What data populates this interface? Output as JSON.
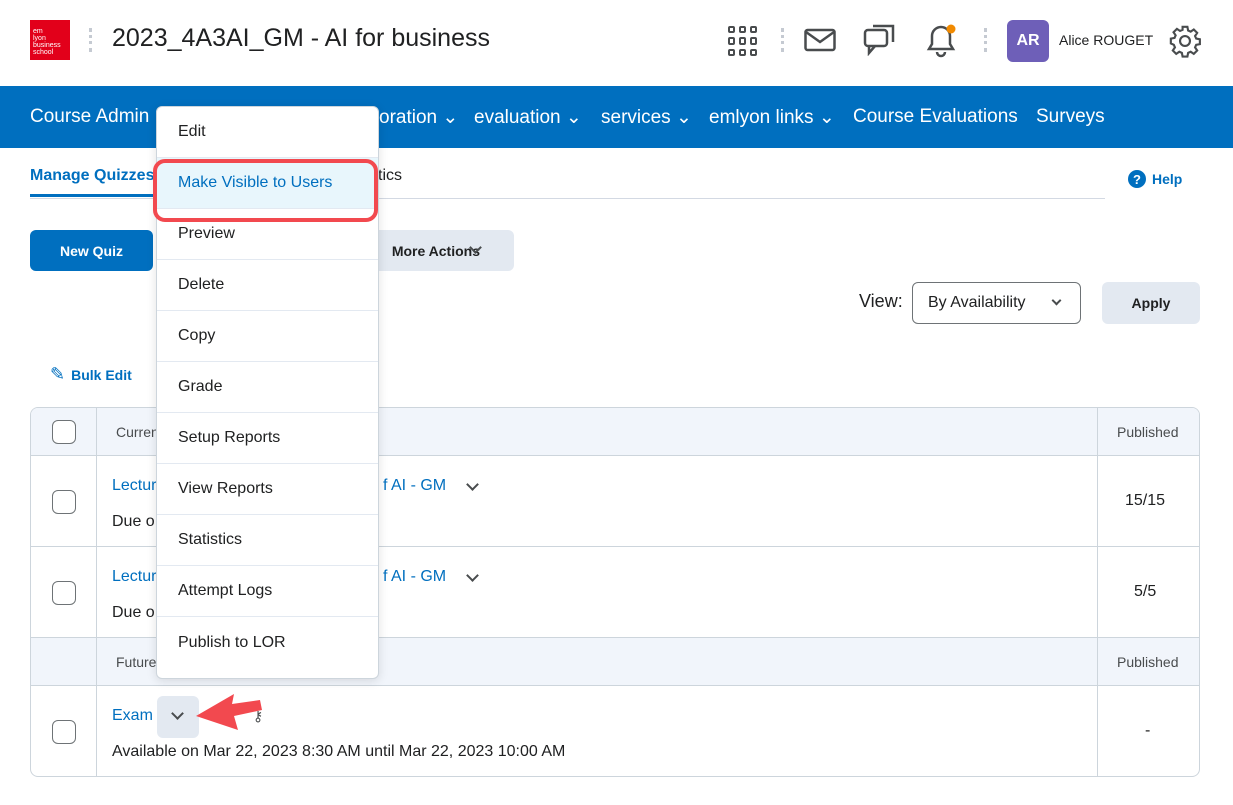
{
  "header": {
    "logo_text": "em lyon business school",
    "course_title": "2023_4A3AI_GM - AI for business",
    "user_initials": "AR",
    "user_name": "Alice ROUGET",
    "notification_dot_color": "#f18a00"
  },
  "nav": {
    "items": [
      "Course Admin",
      "oration",
      "evaluation",
      "services",
      "emlyon links",
      "Course Evaluations",
      "Surveys"
    ],
    "color": "#006fbf"
  },
  "tabs": {
    "manage": "Manage Quizzes",
    "stats_partial": "tics",
    "help": "Help"
  },
  "toolbar": {
    "new_quiz": "New Quiz",
    "more_actions": "More Actions",
    "view_label": "View:",
    "view_value": "By Availability",
    "apply": "Apply",
    "bulk_edit": "Bulk Edit"
  },
  "table": {
    "current_header": "Curren",
    "published_header": "Published",
    "rows": [
      {
        "name_left": "Lectur",
        "name_right": "f AI - GM",
        "sub": "Due o",
        "published": "15/15"
      },
      {
        "name_left": "Lectur",
        "name_right": "f AI - GM",
        "sub": "Due o",
        "published": "5/5"
      }
    ],
    "future_header": "Future",
    "future_published_header": "Published",
    "exam": {
      "name": "Exam",
      "sub": "Available on Mar 22, 2023 8:30 AM until Mar 22, 2023 10:00 AM",
      "published": "-"
    }
  },
  "context_menu": {
    "items": [
      "Edit",
      "Make Visible to Users",
      "Preview",
      "Delete",
      "Copy",
      "Grade",
      "Setup Reports",
      "View Reports",
      "Statistics",
      "Attempt Logs",
      "Publish to LOR"
    ],
    "highlighted": "Make Visible to Users",
    "highlight_color": "#f2494f"
  }
}
